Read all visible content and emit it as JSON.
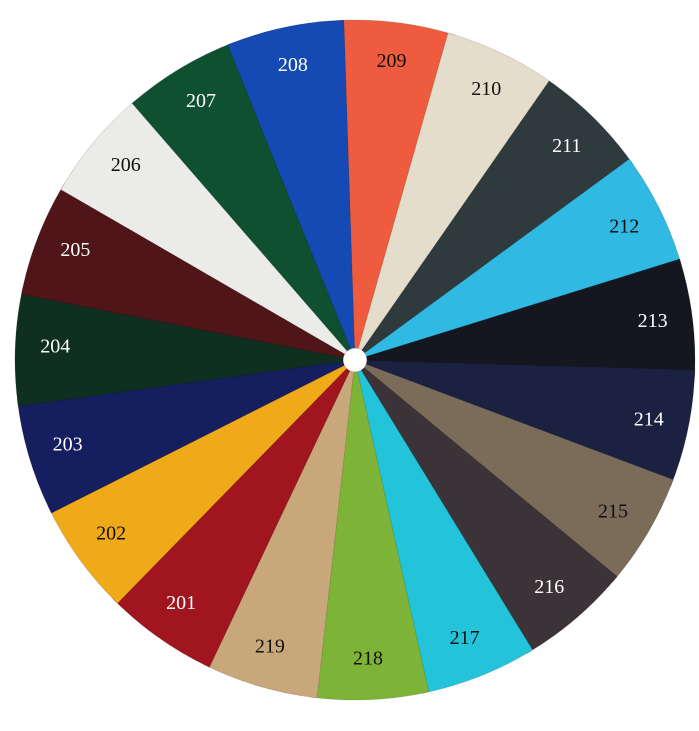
{
  "swatches": [
    {
      "label": "209",
      "color": "#ef5b3e"
    },
    {
      "label": "210",
      "color": "#e5ddcb"
    },
    {
      "label": "211",
      "color": "#2f3a3c"
    },
    {
      "label": "212",
      "color": "#30b9e2"
    },
    {
      "label": "213",
      "color": "#14171f"
    },
    {
      "label": "214",
      "color": "#1b2140"
    },
    {
      "label": "215",
      "color": "#7b6b59"
    },
    {
      "label": "216",
      "color": "#3b3337"
    },
    {
      "label": "217",
      "color": "#23c3d9"
    },
    {
      "label": "218",
      "color": "#7db337"
    },
    {
      "label": "219",
      "color": "#c8a87b"
    },
    {
      "label": "201",
      "color": "#a1151f"
    },
    {
      "label": "202",
      "color": "#f0a919"
    },
    {
      "label": "203",
      "color": "#151e5e"
    },
    {
      "label": "204",
      "color": "#0f3021"
    },
    {
      "label": "205",
      "color": "#4f1519"
    },
    {
      "label": "206",
      "color": "#ebebe8"
    },
    {
      "label": "207",
      "color": "#0f5031"
    },
    {
      "label": "208",
      "color": "#1549b3"
    }
  ]
}
